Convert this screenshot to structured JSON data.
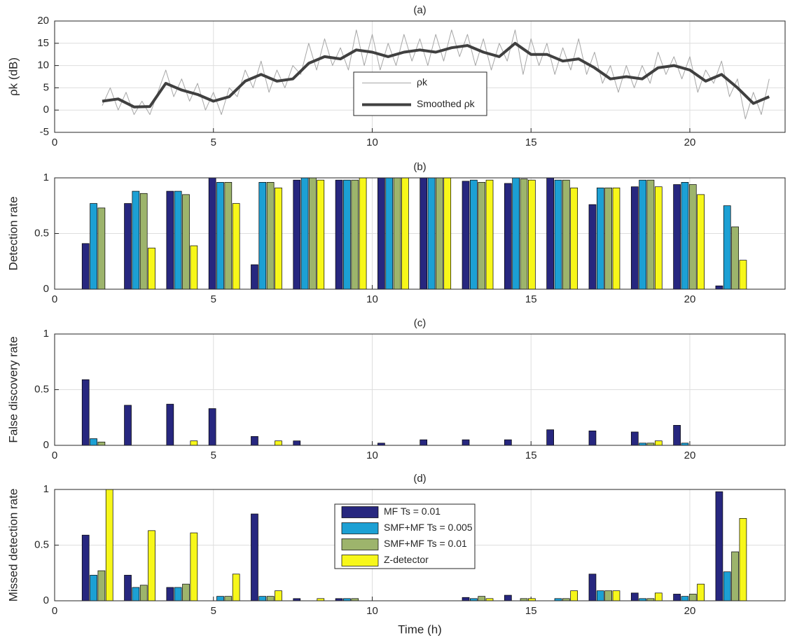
{
  "chart_data": [
    {
      "type": "line",
      "title": "(a)",
      "ylabel": "ρk (dB)",
      "xlim": [
        0,
        23
      ],
      "xticks": [
        0,
        5,
        10,
        15,
        20
      ],
      "ylim": [
        -5,
        20
      ],
      "yticks": [
        -5,
        0,
        5,
        10,
        15,
        20
      ],
      "grid": true,
      "legend": "center",
      "series": [
        {
          "name": "ρk",
          "color": "#a6a6a6",
          "width": 1,
          "x": [
            1.5,
            1.75,
            2,
            2.25,
            2.5,
            2.75,
            3,
            3.25,
            3.5,
            3.75,
            4,
            4.25,
            4.5,
            4.75,
            5,
            5.25,
            5.5,
            5.75,
            6,
            6.25,
            6.5,
            6.75,
            7,
            7.25,
            7.5,
            7.75,
            8,
            8.25,
            8.5,
            8.75,
            9,
            9.25,
            9.5,
            9.75,
            10,
            10.25,
            10.5,
            10.75,
            11,
            11.25,
            11.5,
            11.75,
            12,
            12.25,
            12.5,
            12.75,
            13,
            13.25,
            13.5,
            13.75,
            14,
            14.25,
            14.5,
            14.75,
            15,
            15.25,
            15.5,
            15.75,
            16,
            16.25,
            16.5,
            16.75,
            17,
            17.25,
            17.5,
            17.75,
            18,
            18.25,
            18.5,
            18.75,
            19,
            19.25,
            19.5,
            19.75,
            20,
            20.25,
            20.5,
            20.75,
            21,
            21.25,
            21.5,
            21.75,
            22,
            22.25,
            22.5
          ],
          "values": [
            1,
            5,
            0,
            4,
            -1,
            2,
            -1,
            4,
            9,
            3,
            7,
            2,
            6,
            0,
            4,
            -1,
            5,
            3,
            9,
            5,
            11,
            4,
            9,
            5,
            10,
            8,
            15,
            9,
            16,
            10,
            14,
            9,
            18,
            10,
            17,
            9,
            15,
            10,
            17,
            11,
            16,
            10,
            17,
            11,
            18,
            12,
            17,
            10,
            16,
            9,
            15,
            11,
            18,
            8,
            16,
            10,
            15,
            8,
            14,
            9,
            16,
            8,
            13,
            6,
            10,
            4,
            10,
            5,
            10,
            6,
            13,
            8,
            12,
            7,
            12,
            4,
            9,
            6,
            11,
            3,
            7,
            -2,
            4,
            -1,
            7
          ]
        },
        {
          "name": "Smoothed ρk",
          "color": "#404040",
          "width": 4,
          "x": [
            1.5,
            2,
            2.5,
            3,
            3.5,
            4,
            4.5,
            5,
            5.5,
            6,
            6.5,
            7,
            7.5,
            8,
            8.5,
            9,
            9.5,
            10,
            10.5,
            11,
            11.5,
            12,
            12.5,
            13,
            13.5,
            14,
            14.5,
            15,
            15.5,
            16,
            16.5,
            17,
            17.5,
            18,
            18.5,
            19,
            19.5,
            20,
            20.5,
            21,
            21.5,
            22,
            22.5
          ],
          "values": [
            2,
            2.5,
            0.7,
            0.8,
            6,
            4.5,
            3.5,
            2,
            3,
            6.5,
            8,
            6.5,
            7,
            10.5,
            12,
            11.5,
            13.5,
            13,
            12,
            13,
            13.5,
            13,
            14,
            14.5,
            13,
            12,
            15,
            12.5,
            12.5,
            11,
            11.5,
            9.5,
            7,
            7.5,
            7,
            9.5,
            10,
            9,
            6.5,
            8,
            5,
            1.5,
            3
          ]
        }
      ]
    },
    {
      "type": "bar",
      "title": "(b)",
      "ylabel": "Detection rate",
      "xlim": [
        0,
        23
      ],
      "xticks": [
        0,
        5,
        10,
        15,
        20
      ],
      "ylim": [
        0,
        1
      ],
      "yticks": [
        0,
        0.5,
        1
      ],
      "grid": true,
      "x": [
        1.35,
        2.68,
        4.01,
        5.34,
        6.67,
        8.0,
        9.33,
        10.66,
        11.99,
        13.32,
        14.65,
        15.98,
        17.31,
        18.64,
        19.97,
        21.3
      ],
      "series": [
        {
          "color": "#27277f",
          "values": [
            0.41,
            0.77,
            0.88,
            1,
            0.22,
            0.98,
            0.98,
            1,
            1,
            0.97,
            0.95,
            1,
            0.76,
            0.92,
            0.94,
            0.03
          ]
        },
        {
          "color": "#1ca0d4",
          "values": [
            0.77,
            0.88,
            0.88,
            0.96,
            0.96,
            1,
            0.98,
            1,
            1,
            0.98,
            1,
            0.98,
            0.91,
            0.98,
            0.96,
            0.75
          ]
        },
        {
          "color": "#9db46c",
          "values": [
            0.73,
            0.86,
            0.85,
            0.96,
            0.96,
            1,
            0.98,
            1,
            1,
            0.96,
            0.99,
            0.98,
            0.91,
            0.98,
            0.94,
            0.56
          ]
        },
        {
          "color": "#f7f71a",
          "values": [
            0,
            0.37,
            0.39,
            0.77,
            0.91,
            0.98,
            1,
            1,
            1,
            0.98,
            0.98,
            0.91,
            0.91,
            0.92,
            0.85,
            0.26
          ]
        }
      ]
    },
    {
      "type": "bar",
      "title": "(c)",
      "ylabel": "False discovery rate",
      "xlim": [
        0,
        23
      ],
      "xticks": [
        0,
        5,
        10,
        15,
        20
      ],
      "ylim": [
        0,
        1
      ],
      "yticks": [
        0,
        0.5,
        1
      ],
      "grid": true,
      "x": [
        1.35,
        2.68,
        4.01,
        5.34,
        6.67,
        8.0,
        9.33,
        10.66,
        11.99,
        13.32,
        14.65,
        15.98,
        17.31,
        18.64,
        19.97,
        21.3
      ],
      "series": [
        {
          "color": "#27277f",
          "values": [
            0.59,
            0.36,
            0.37,
            0.33,
            0.08,
            0.04,
            0,
            0.02,
            0.05,
            0.05,
            0.05,
            0.14,
            0.13,
            0.12,
            0.18,
            0
          ]
        },
        {
          "color": "#1ca0d4",
          "values": [
            0.06,
            0,
            0,
            0,
            0,
            0,
            0,
            0,
            0,
            0,
            0,
            0,
            0,
            0.02,
            0.02,
            0
          ]
        },
        {
          "color": "#9db46c",
          "values": [
            0.03,
            0,
            0,
            0,
            0,
            0,
            0,
            0,
            0,
            0,
            0,
            0,
            0,
            0.02,
            0,
            0
          ]
        },
        {
          "color": "#f7f71a",
          "values": [
            0,
            0,
            0.04,
            0,
            0.04,
            0,
            0,
            0,
            0,
            0,
            0,
            0,
            0,
            0.04,
            0,
            0
          ]
        }
      ]
    },
    {
      "type": "bar",
      "title": "(d)",
      "ylabel": "Missed detection rate",
      "xlabel": "Time (h)",
      "xlim": [
        0,
        23
      ],
      "xticks": [
        0,
        5,
        10,
        15,
        20
      ],
      "ylim": [
        0,
        1
      ],
      "yticks": [
        0,
        0.5,
        1
      ],
      "grid": true,
      "legend": "center",
      "x": [
        1.35,
        2.68,
        4.01,
        5.34,
        6.67,
        8.0,
        9.33,
        10.66,
        11.99,
        13.32,
        14.65,
        15.98,
        17.31,
        18.64,
        19.97,
        21.3
      ],
      "series": [
        {
          "name": "MF Ts = 0.01",
          "color": "#27277f",
          "values": [
            0.59,
            0.23,
            0.12,
            0,
            0.78,
            0.02,
            0.02,
            0,
            0,
            0.03,
            0.05,
            0,
            0.24,
            0.07,
            0.06,
            0.98
          ]
        },
        {
          "name": "SMF+MF Ts = 0.005",
          "color": "#1ca0d4",
          "values": [
            0.23,
            0.12,
            0.12,
            0.04,
            0.04,
            0,
            0.02,
            0,
            0,
            0.02,
            0,
            0.02,
            0.09,
            0.02,
            0.04,
            0.26
          ]
        },
        {
          "name": "SMF+MF Ts = 0.01",
          "color": "#9db46c",
          "values": [
            0.27,
            0.14,
            0.15,
            0.04,
            0.04,
            0,
            0.02,
            0,
            0,
            0.04,
            0.02,
            0.02,
            0.09,
            0.02,
            0.06,
            0.44
          ]
        },
        {
          "name": "Z-detector",
          "color": "#f7f71a",
          "values": [
            1,
            0.63,
            0.61,
            0.24,
            0.09,
            0.02,
            0,
            0,
            0,
            0.02,
            0.02,
            0.09,
            0.09,
            0.07,
            0.15,
            0.74
          ]
        }
      ]
    }
  ]
}
